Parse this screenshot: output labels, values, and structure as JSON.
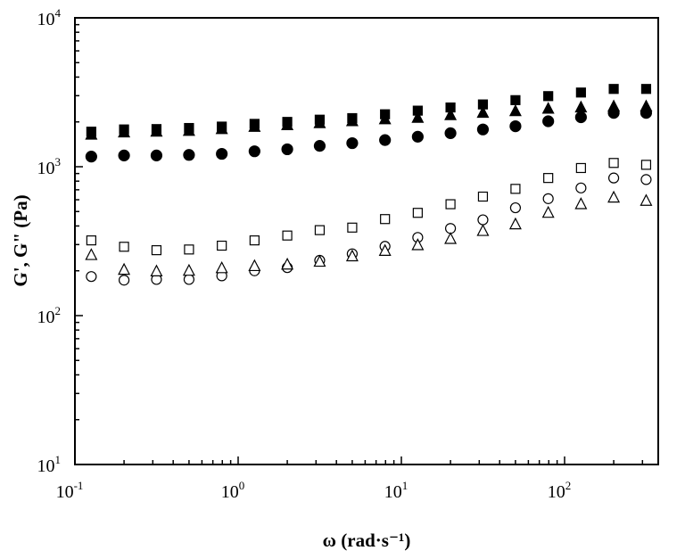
{
  "chart_data": {
    "type": "scatter",
    "title": "",
    "xlabel": "ω (rad·s⁻¹)",
    "ylabel": "G', G\" (Pa)",
    "xscale": "log",
    "yscale": "log",
    "xlim": [
      0.1,
      500
    ],
    "ylim": [
      10,
      10000
    ],
    "grid": false,
    "legend": "none",
    "x_ticks": [
      {
        "value": 0.1,
        "base": "10",
        "exp": "-1"
      },
      {
        "value": 1,
        "base": "10",
        "exp": "0"
      },
      {
        "value": 10,
        "base": "10",
        "exp": "1"
      },
      {
        "value": 100,
        "base": "10",
        "exp": "2"
      }
    ],
    "y_ticks": [
      {
        "value": 10,
        "base": "10",
        "exp": "1"
      },
      {
        "value": 100,
        "base": "10",
        "exp": "2"
      },
      {
        "value": 1000,
        "base": "10",
        "exp": "3"
      },
      {
        "value": 10000,
        "base": "10",
        "exp": "4"
      }
    ],
    "x": [
      0.126,
      0.2,
      0.316,
      0.5,
      0.794,
      1.26,
      2.0,
      3.16,
      5.0,
      7.94,
      12.6,
      20.0,
      31.6,
      50.0,
      79.4,
      126,
      200,
      316
    ],
    "series": [
      {
        "marker": "square",
        "fill": "filled",
        "values": [
          1720,
          1780,
          1790,
          1820,
          1860,
          1940,
          2000,
          2070,
          2120,
          2250,
          2380,
          2500,
          2620,
          2800,
          2980,
          3150,
          3330,
          3330
        ]
      },
      {
        "marker": "triangle",
        "fill": "filled",
        "values": [
          1640,
          1700,
          1720,
          1740,
          1790,
          1850,
          1900,
          1960,
          2020,
          2080,
          2130,
          2220,
          2300,
          2360,
          2450,
          2500,
          2540,
          2540
        ]
      },
      {
        "marker": "circle",
        "fill": "filled",
        "values": [
          1170,
          1190,
          1190,
          1200,
          1220,
          1270,
          1310,
          1380,
          1440,
          1510,
          1590,
          1680,
          1780,
          1870,
          2020,
          2150,
          2300,
          2300
        ]
      },
      {
        "marker": "square",
        "fill": "open",
        "values": [
          320,
          290,
          275,
          278,
          295,
          320,
          345,
          375,
          390,
          445,
          490,
          560,
          630,
          710,
          840,
          980,
          1060,
          1030
        ]
      },
      {
        "marker": "circle",
        "fill": "open",
        "values": [
          183,
          173,
          175,
          175,
          185,
          200,
          210,
          235,
          260,
          292,
          335,
          385,
          440,
          530,
          610,
          720,
          840,
          820
        ]
      },
      {
        "marker": "triangle",
        "fill": "open",
        "values": [
          255,
          203,
          198,
          200,
          208,
          215,
          220,
          230,
          250,
          272,
          297,
          327,
          370,
          410,
          490,
          560,
          620,
          590
        ]
      }
    ]
  }
}
